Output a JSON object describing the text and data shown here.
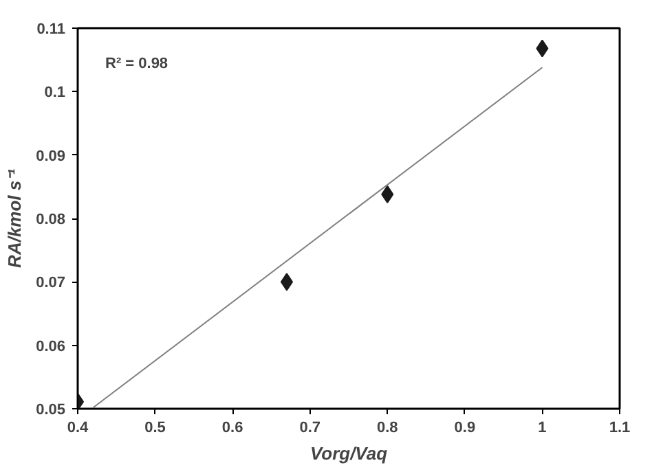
{
  "chart_data": {
    "type": "scatter",
    "xlabel": "Vorg/Vaq",
    "ylabel": "RA/kmol s⁻¹",
    "annotations": [
      "R² = 0.98"
    ],
    "series": [
      {
        "marker": "diamond",
        "color": "#1a1a1a",
        "x": [
          0.4,
          0.67,
          0.8,
          1.0
        ],
        "values": [
          0.0511,
          0.07,
          0.0838,
          0.1068
        ]
      },
      {
        "type": "line",
        "marker": "none",
        "color": "#808080",
        "x": [
          0.418,
          1.0
        ],
        "values": [
          0.05,
          0.1038
        ]
      }
    ],
    "xlim": [
      0.4,
      1.1
    ],
    "xticks": [
      0.4,
      0.5,
      0.6,
      0.7,
      0.8,
      0.9,
      {
        "value": 1.0,
        "label": "1"
      },
      1.1
    ],
    "ylim": [
      0.05,
      0.11
    ],
    "yticks": [
      0.05,
      0.06,
      0.07,
      0.08,
      0.09,
      {
        "value": 0.1,
        "label": "0.1"
      },
      0.11
    ],
    "grid": false
  }
}
